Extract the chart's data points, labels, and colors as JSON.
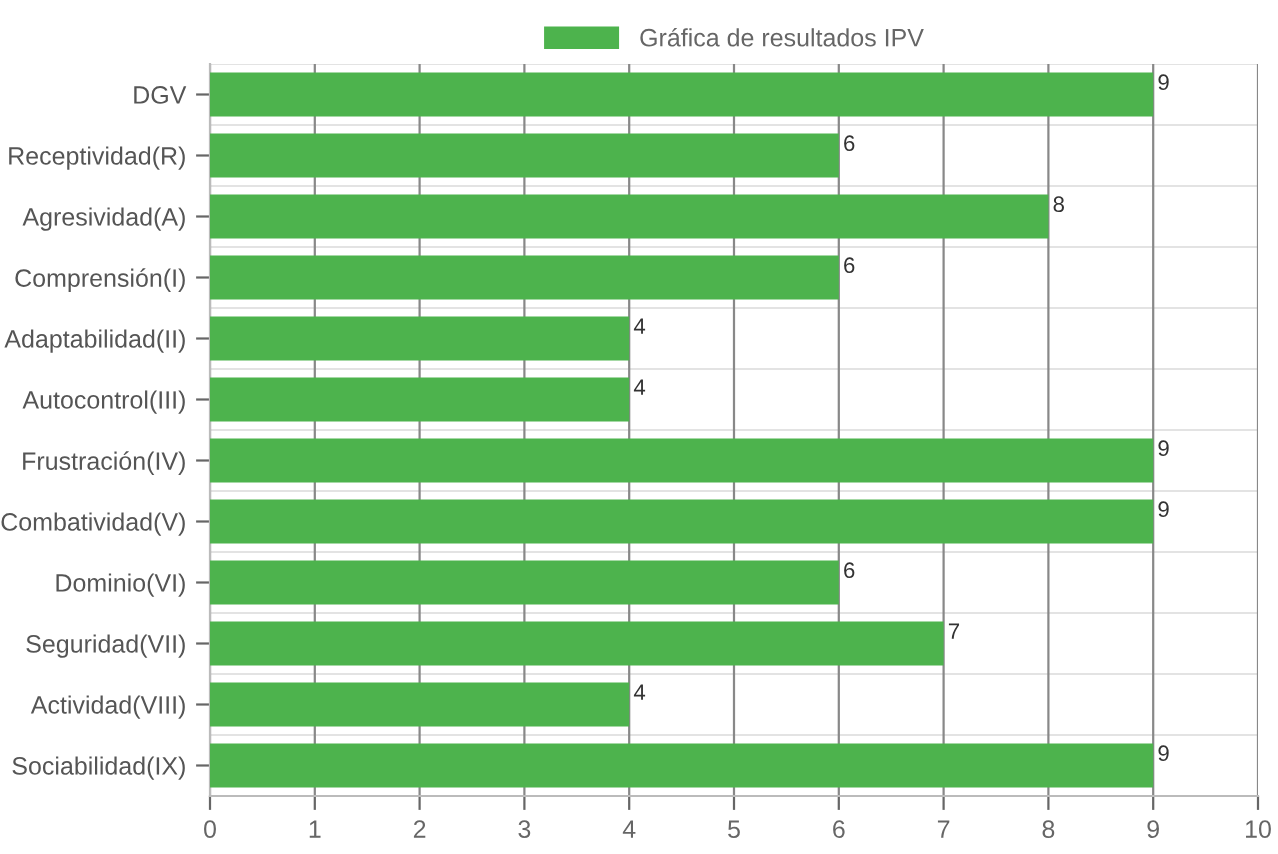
{
  "chart_data": {
    "type": "bar",
    "orientation": "horizontal",
    "categories": [
      "DGV",
      "Receptividad(R)",
      "Agresividad(A)",
      "Comprensión(I)",
      "Adaptabilidad(II)",
      "Autocontrol(III)",
      "Frustración(IV)",
      "Combatividad(V)",
      "Dominio(VI)",
      "Seguridad(VII)",
      "Actividad(VIII)",
      "Sociabilidad(IX)"
    ],
    "series": [
      {
        "name": "Gráfica de resultados IPV",
        "color": "#4db34d",
        "values": [
          9,
          6,
          8,
          6,
          4,
          4,
          9,
          9,
          6,
          7,
          4,
          9
        ]
      }
    ],
    "xlim": [
      0,
      10
    ],
    "xticks": [
      0,
      1,
      2,
      3,
      4,
      5,
      6,
      7,
      8,
      9,
      10
    ],
    "grid": true,
    "legend": "top",
    "data_labels": true
  }
}
